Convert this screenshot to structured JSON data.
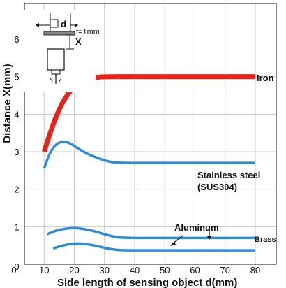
{
  "chart_data": {
    "type": "line",
    "title": "",
    "xlabel": "Side length of sensing object d(mm)",
    "ylabel": "Distance X(mm)",
    "xlim": [
      0,
      80
    ],
    "ylim": [
      0,
      6
    ],
    "x_ticks": [
      "0",
      "10",
      "20",
      "30",
      "40",
      "50",
      "60",
      "70",
      "80"
    ],
    "y_ticks": [
      "0",
      "1",
      "2",
      "3",
      "4",
      "5",
      "6"
    ],
    "grid": true,
    "series": [
      {
        "name": "Iron",
        "color": "#e8231c",
        "points": [
          [
            10,
            3.0
          ],
          [
            12,
            3.5
          ],
          [
            14,
            3.95
          ],
          [
            16,
            4.3
          ],
          [
            18,
            4.55
          ],
          [
            20,
            4.75
          ],
          [
            23,
            4.9
          ],
          [
            27,
            4.98
          ],
          [
            30,
            5.0
          ],
          [
            40,
            5.0
          ],
          [
            60,
            5.0
          ],
          [
            80,
            5.0
          ]
        ]
      },
      {
        "name": "Stainless steel\n(SUS304)",
        "label_lines": [
          "Stainless steel",
          "(SUS304)"
        ],
        "color": "#2e8bdc",
        "points": [
          [
            10,
            2.55
          ],
          [
            12,
            3.0
          ],
          [
            14,
            3.2
          ],
          [
            16,
            3.28
          ],
          [
            18,
            3.25
          ],
          [
            20,
            3.15
          ],
          [
            24,
            2.95
          ],
          [
            28,
            2.82
          ],
          [
            32,
            2.72
          ],
          [
            36,
            2.7
          ],
          [
            50,
            2.7
          ],
          [
            80,
            2.7
          ]
        ]
      },
      {
        "name": "Brass",
        "color": "#2e8bdc",
        "points": [
          [
            11,
            0.8
          ],
          [
            14,
            0.9
          ],
          [
            17,
            0.95
          ],
          [
            20,
            0.97
          ],
          [
            24,
            0.93
          ],
          [
            28,
            0.85
          ],
          [
            32,
            0.75
          ],
          [
            36,
            0.7
          ],
          [
            50,
            0.7
          ],
          [
            80,
            0.7
          ]
        ]
      },
      {
        "name": "Aluminum",
        "color": "#2e8bdc",
        "points": [
          [
            13,
            0.42
          ],
          [
            16,
            0.5
          ],
          [
            20,
            0.56
          ],
          [
            24,
            0.54
          ],
          [
            28,
            0.48
          ],
          [
            32,
            0.4
          ],
          [
            36,
            0.37
          ],
          [
            50,
            0.37
          ],
          [
            80,
            0.37
          ]
        ]
      }
    ],
    "inset": {
      "d_label": "d",
      "x_label": "X",
      "t_label": "t=1mm"
    }
  }
}
